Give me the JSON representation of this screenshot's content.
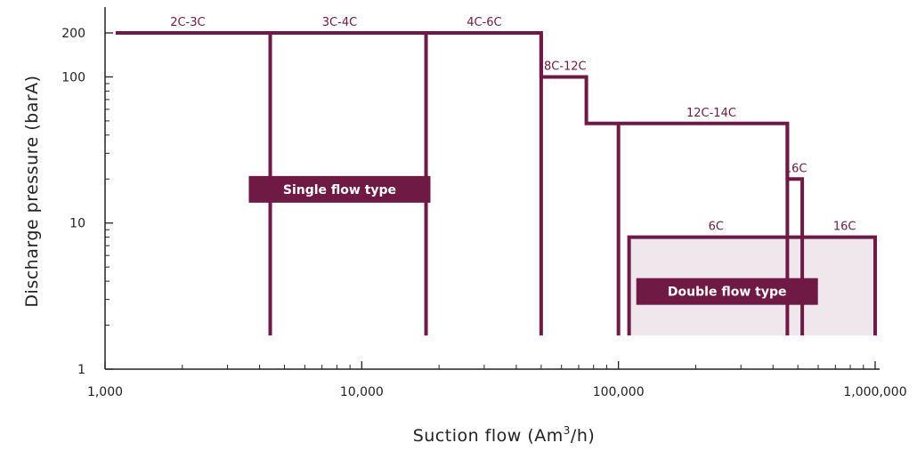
{
  "chart_data": {
    "type": "line",
    "xlabel": "Suction flow (Am",
    "xlabel_sup": "3",
    "xlabel_suffix": "/h)",
    "ylabel": "Discharge pressure (barA)",
    "x_scale": "log",
    "y_scale": "log",
    "xlim": [
      1000,
      1000000
    ],
    "ylim": [
      1,
      300
    ],
    "x_ticks": [
      {
        "value": 1000,
        "label": "1,000"
      },
      {
        "value": 10000,
        "label": "10,000"
      },
      {
        "value": 100000,
        "label": "100,000"
      },
      {
        "value": 1000000,
        "label": "1,000,000"
      }
    ],
    "y_ticks": [
      {
        "value": 1,
        "label": "1"
      },
      {
        "value": 10,
        "label": "10"
      },
      {
        "value": 100,
        "label": "100"
      },
      {
        "value": 200,
        "label": "200"
      }
    ],
    "series_color": "#6e1a44",
    "fill_color": "#efe7ec",
    "single_flow_envelope": {
      "label": "Single flow type",
      "points": [
        [
          1100,
          200
        ],
        [
          50000,
          200
        ],
        [
          50000,
          100
        ],
        [
          75000,
          100
        ],
        [
          75000,
          48
        ],
        [
          455000,
          48
        ],
        [
          455000,
          20
        ],
        [
          520000,
          20
        ],
        [
          520000,
          1.7
        ]
      ]
    },
    "single_flow_dividers": [
      {
        "x": 4400,
        "top": 200
      },
      {
        "x": 17800,
        "top": 200
      },
      {
        "x": 50000,
        "top": 200
      },
      {
        "x": 100000,
        "top": 48
      },
      {
        "x": 455000,
        "top": 48
      }
    ],
    "double_flow_envelope": {
      "label": "Double flow type",
      "rect": {
        "x0": 110000,
        "x1": 1000000,
        "y0": 1.7,
        "y1": 8
      }
    },
    "model_labels": [
      {
        "text": "2C-3C",
        "x": 2100,
        "y": 200
      },
      {
        "text": "3C-4C",
        "x": 8200,
        "y": 200
      },
      {
        "text": "4C-6C",
        "x": 30000,
        "y": 200
      },
      {
        "text": "8C-12C",
        "x": 62000,
        "y": 100
      },
      {
        "text": "12C-14C",
        "x": 230000,
        "y": 48
      },
      {
        "text": "16C",
        "x": 490000,
        "y": 20
      },
      {
        "text": "6C",
        "x": 240000,
        "y": 8
      },
      {
        "text": "16C",
        "x": 760000,
        "y": 8
      }
    ],
    "box_labels": [
      {
        "text": "Single flow type",
        "x": 8200,
        "y": 17
      },
      {
        "text": "Double flow type",
        "x": 265000,
        "y": 3.4
      }
    ]
  }
}
